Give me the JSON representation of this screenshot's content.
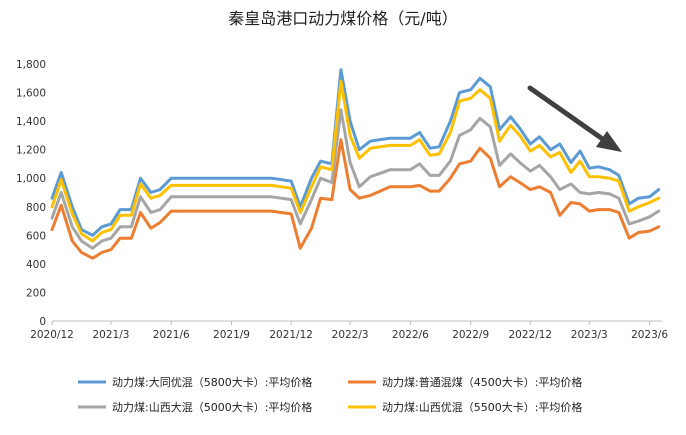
{
  "chart_data": {
    "type": "line",
    "title": "秦皇岛港口动力煤价格（元/吨）",
    "xlabel": "",
    "ylabel": "",
    "x_tick_labels": [
      "2020/12",
      "2021/3",
      "2021/6",
      "2021/9",
      "2021/12",
      "2022/3",
      "2022/6",
      "2022/9",
      "2022/12",
      "2023/3",
      "2023/6"
    ],
    "ylim": [
      0,
      1800
    ],
    "y_ticks": [
      0,
      200,
      400,
      600,
      800,
      1000,
      1200,
      1400,
      1600,
      1800
    ],
    "y_tick_labels": [
      "0",
      "200",
      "400",
      "600",
      "800",
      "1,000",
      "1,200",
      "1,400",
      "1,600",
      "1,800"
    ],
    "grid": false,
    "legend_position": "bottom",
    "has_trend_arrow": true,
    "x": [
      "2020-12-01",
      "2020-12-15",
      "2021-01-01",
      "2021-01-15",
      "2021-02-01",
      "2021-02-15",
      "2021-03-01",
      "2021-03-15",
      "2021-04-01",
      "2021-04-15",
      "2021-05-01",
      "2021-05-15",
      "2021-06-01",
      "2021-07-01",
      "2021-08-01",
      "2021-09-01",
      "2021-10-01",
      "2021-11-01",
      "2021-12-01",
      "2021-12-15",
      "2022-01-01",
      "2022-01-15",
      "2022-02-01",
      "2022-02-15",
      "2022-03-01",
      "2022-03-15",
      "2022-04-01",
      "2022-05-01",
      "2022-06-01",
      "2022-06-15",
      "2022-07-01",
      "2022-07-15",
      "2022-08-01",
      "2022-08-15",
      "2022-09-01",
      "2022-09-15",
      "2022-10-01",
      "2022-10-15",
      "2022-11-01",
      "2022-11-15",
      "2022-12-01",
      "2022-12-15",
      "2023-01-01",
      "2023-01-15",
      "2023-02-01",
      "2023-02-15",
      "2023-03-01",
      "2023-03-15",
      "2023-04-01",
      "2023-04-15",
      "2023-05-01",
      "2023-05-15",
      "2023-06-01",
      "2023-06-15"
    ],
    "series": [
      {
        "name": "动力煤:大同优混（5800大卡）:平均价格",
        "color": "#5B9BD5",
        "values": [
          860,
          1040,
          800,
          640,
          600,
          660,
          680,
          780,
          780,
          1000,
          900,
          920,
          1000,
          1000,
          1000,
          1000,
          1000,
          1000,
          980,
          800,
          1000,
          1120,
          1100,
          1760,
          1400,
          1200,
          1260,
          1280,
          1280,
          1320,
          1210,
          1220,
          1400,
          1600,
          1620,
          1700,
          1640,
          1340,
          1430,
          1350,
          1240,
          1290,
          1200,
          1240,
          1110,
          1190,
          1070,
          1080,
          1060,
          1020,
          820,
          860,
          870,
          920
        ]
      },
      {
        "name": "动力煤:普通混煤（4500大卡）:平均价格",
        "color": "#ED7D31",
        "values": [
          640,
          810,
          560,
          480,
          440,
          480,
          500,
          580,
          580,
          760,
          650,
          690,
          770,
          770,
          770,
          770,
          770,
          770,
          750,
          510,
          650,
          860,
          850,
          1270,
          920,
          860,
          880,
          940,
          940,
          950,
          910,
          910,
          1000,
          1100,
          1120,
          1210,
          1140,
          940,
          1010,
          970,
          920,
          940,
          900,
          740,
          830,
          820,
          770,
          780,
          780,
          760,
          580,
          620,
          630,
          660
        ]
      },
      {
        "name": "动力煤:山西大混（5000大卡）:平均价格",
        "color": "#A5A5A5",
        "values": [
          720,
          900,
          660,
          560,
          510,
          560,
          580,
          660,
          660,
          870,
          760,
          780,
          870,
          870,
          870,
          870,
          870,
          870,
          850,
          680,
          850,
          1000,
          970,
          1480,
          1110,
          940,
          1010,
          1060,
          1060,
          1100,
          1020,
          1020,
          1120,
          1300,
          1340,
          1420,
          1360,
          1090,
          1170,
          1110,
          1050,
          1090,
          1010,
          920,
          960,
          900,
          890,
          900,
          890,
          860,
          680,
          700,
          730,
          770
        ]
      },
      {
        "name": "动力煤:山西优混（5500大卡）:平均价格",
        "color": "#FFC000",
        "values": [
          800,
          990,
          750,
          610,
          560,
          620,
          640,
          740,
          740,
          960,
          860,
          880,
          950,
          950,
          950,
          950,
          950,
          950,
          930,
          760,
          940,
          1080,
          1060,
          1680,
          1300,
          1140,
          1210,
          1230,
          1230,
          1270,
          1160,
          1170,
          1320,
          1540,
          1560,
          1620,
          1560,
          1260,
          1370,
          1300,
          1190,
          1230,
          1150,
          1180,
          1040,
          1120,
          1010,
          1010,
          1000,
          980,
          770,
          800,
          830,
          860
        ]
      }
    ]
  }
}
